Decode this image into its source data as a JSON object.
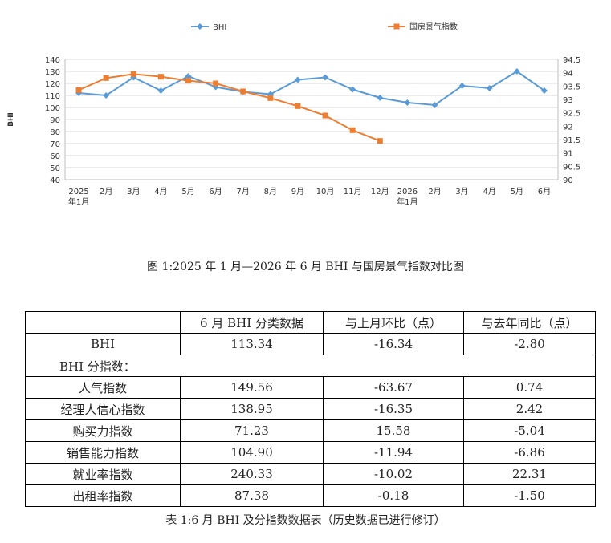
{
  "chart_data": {
    "type": "line",
    "categories": [
      "2025\n年1月",
      "2月",
      "3月",
      "4月",
      "5月",
      "6月",
      "7月",
      "8月",
      "9月",
      "10月",
      "11月",
      "12月",
      "2026\n年1月",
      "2月",
      "3月",
      "4月",
      "5月",
      "6月"
    ],
    "series": [
      {
        "name": "BHI",
        "axis": "left",
        "color": "#5b9bd5",
        "marker": "diamond",
        "values": [
          112,
          110,
          125,
          114,
          126,
          117,
          113,
          111,
          123,
          125,
          115,
          108,
          104,
          102,
          118,
          116,
          130,
          114
        ]
      },
      {
        "name": "国房景气指数",
        "axis": "right",
        "color": "#ed7d31",
        "marker": "square",
        "values": [
          93.35,
          93.8,
          93.95,
          93.85,
          93.7,
          93.6,
          93.3,
          93.05,
          92.75,
          92.4,
          91.85,
          91.45,
          null,
          null,
          null,
          null,
          null,
          null
        ]
      }
    ],
    "ylabel": "BHI",
    "yleft": {
      "min": 40,
      "max": 140,
      "step": 10,
      "ticks": [
        "140",
        "130",
        "120",
        "110",
        "100",
        "90",
        "80",
        "70",
        "60",
        "50",
        "40"
      ]
    },
    "yright": {
      "min": 90,
      "max": 94.5,
      "step": 0.5,
      "ticks": [
        "94.5",
        "94",
        "93.5",
        "93",
        "92.5",
        "92",
        "91.5",
        "91",
        "90.5",
        "90"
      ]
    },
    "legend_position": "top",
    "grid": true
  },
  "figure_caption": "图 1:2025 年 1 月—2026 年 6 月 BHI 与国房景气指数对比图",
  "table": {
    "headers": [
      "",
      "6 月 BHI 分类数据",
      "与上月环比（点）",
      "与去年同比（点）"
    ],
    "bhi_row": {
      "label": "BHI",
      "value": "113.34",
      "mom": "-16.34",
      "yoy": "-2.80"
    },
    "sub_heading": "BHI 分指数：",
    "rows": [
      {
        "label": "人气指数",
        "value": "149.56",
        "mom": "-63.67",
        "yoy": "0.74"
      },
      {
        "label": "经理人信心指数",
        "value": "138.95",
        "mom": "-16.35",
        "yoy": "2.42"
      },
      {
        "label": "购买力指数",
        "value": "71.23",
        "mom": "15.58",
        "yoy": "-5.04"
      },
      {
        "label": "销售能力指数",
        "value": "104.90",
        "mom": "-11.94",
        "yoy": "-6.86"
      },
      {
        "label": "就业率指数",
        "value": "240.33",
        "mom": "-10.02",
        "yoy": "22.31"
      },
      {
        "label": "出租率指数",
        "value": "87.38",
        "mom": "-0.18",
        "yoy": "-1.50"
      }
    ]
  },
  "table_caption": "表 1:6 月 BHI 及分指数数据表（历史数据已进行修订）"
}
